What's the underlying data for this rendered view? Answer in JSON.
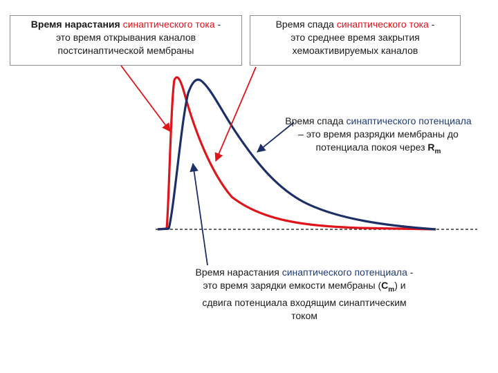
{
  "colors": {
    "current_curve": "#e0141b",
    "potential_curve": "#1c2f66",
    "baseline": "#333333",
    "highlight_red": "#e0141b",
    "highlight_blue": "#1f3a78",
    "box_border": "#8c8c8c"
  },
  "labels": {
    "current_rise": {
      "part1": "Время нарастания ",
      "highlight": "синаптического тока",
      "part2": " -",
      "line2": "это время открывания каналов",
      "line3": "постсинаптической мембраны"
    },
    "current_decay": {
      "part1": "Время спада ",
      "highlight": "синаптического тока",
      "part2": " -",
      "line2": "это среднее время закрытия",
      "line3": "хемоактивируемых каналов"
    },
    "potential_decay": {
      "part1": "Время спада ",
      "highlight": "синаптического потенциала",
      "line2": "– это время разрядки мембраны до",
      "line3": "потенциала покоя через ",
      "symbol": "R",
      "symbol_sub": "m"
    },
    "potential_rise": {
      "part1": "Время нарастания ",
      "highlight": "синаптического потенциала",
      "part2": " -",
      "line2a": "это время зарядки емкости мембраны  (",
      "symbol": "C",
      "symbol_sub": "m",
      "line2b": ") и",
      "line3": "сдвига потенциала входящим синаптическим",
      "line4": "током"
    }
  }
}
